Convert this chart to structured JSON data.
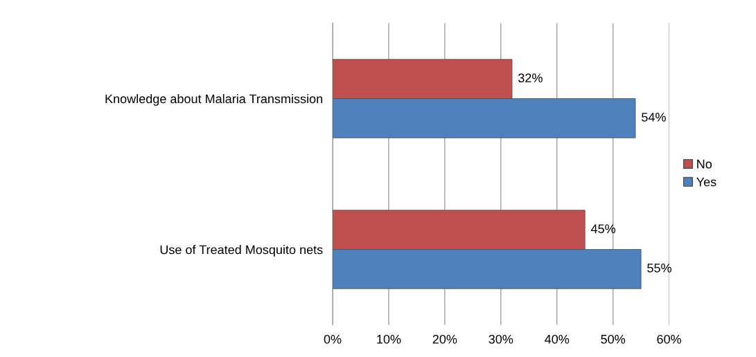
{
  "chart_data": {
    "type": "bar",
    "orientation": "horizontal",
    "categories": [
      "Knowledge about Malaria Transmission",
      "Use of Treated Mosquito nets"
    ],
    "series": [
      {
        "name": "No",
        "color": "#c0504d",
        "values": [
          32,
          45
        ],
        "value_labels": [
          "32%",
          "45%"
        ]
      },
      {
        "name": "Yes",
        "color": "#4f81bd",
        "values": [
          54,
          55
        ],
        "value_labels": [
          "54%",
          "55%"
        ]
      }
    ],
    "xlim": [
      0,
      60
    ],
    "xticks": [
      {
        "value": 0,
        "label": "0%"
      },
      {
        "value": 10,
        "label": "10%"
      },
      {
        "value": 20,
        "label": "20%"
      },
      {
        "value": 30,
        "label": "30%"
      },
      {
        "value": 40,
        "label": "40%"
      },
      {
        "value": 50,
        "label": "50%"
      },
      {
        "value": 60,
        "label": "60%"
      }
    ],
    "grid": "x",
    "legend": "right"
  }
}
